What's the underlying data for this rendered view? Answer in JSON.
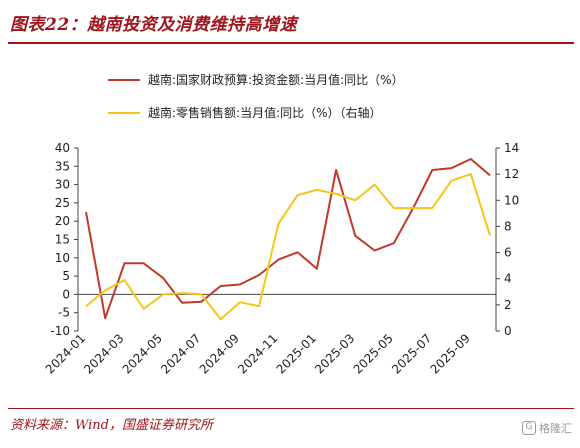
{
  "header": {
    "title": "图表22：越南投资及消费维持高增速"
  },
  "footer": {
    "source": "资料来源：Wind，国盛证券研究所",
    "watermark": "格隆汇"
  },
  "colors": {
    "brand": "#a0141c",
    "series_investment": "#c0392b",
    "series_retail": "#f5c518"
  },
  "chart_data": {
    "type": "line",
    "x": [
      "2024-01",
      "2024-02",
      "2024-03",
      "2024-04",
      "2024-05",
      "2024-06",
      "2024-07",
      "2024-08",
      "2024-09",
      "2024-10",
      "2024-11",
      "2024-12",
      "2025-01",
      "2025-02",
      "2025-03",
      "2025-04",
      "2025-05",
      "2025-06",
      "2025-07",
      "2025-08",
      "2025-09",
      "2025-10"
    ],
    "x_tick_labels": [
      "2024-01",
      "2024-03",
      "2024-05",
      "2024-07",
      "2024-09",
      "2024-11",
      "2025-01",
      "2025-03",
      "2025-05",
      "2025-07",
      "2025-09"
    ],
    "y_left": {
      "range": [
        -10,
        40
      ],
      "ticks": [
        "40",
        "35",
        "30",
        "25",
        "20",
        "15",
        "10",
        "5",
        "0",
        "-5",
        "-10"
      ]
    },
    "y_right": {
      "range": [
        0,
        14
      ],
      "ticks": [
        "14",
        "12",
        "10",
        "8",
        "6",
        "4",
        "2",
        "0"
      ]
    },
    "series": [
      {
        "name": "越南:国家财政预算:投资金额:当月值:同比（%）",
        "axis": "left",
        "color": "#c0392b",
        "values": [
          22.5,
          -6.5,
          8.5,
          8.5,
          4.5,
          -2.3,
          -2.0,
          2.3,
          2.7,
          5.3,
          9.5,
          11.5,
          7.0,
          34.0,
          16.0,
          12.0,
          14.0,
          23.5,
          34.0,
          34.5,
          37.0,
          32.5
        ]
      },
      {
        "name": "越南:零售销售额:当月值:同比（%）（右轴）",
        "axis": "right",
        "color": "#f5c518",
        "values": [
          1.9,
          3.1,
          3.9,
          1.7,
          2.8,
          2.9,
          2.8,
          0.9,
          2.2,
          1.9,
          8.2,
          10.4,
          10.8,
          10.5,
          10.0,
          11.2,
          9.4,
          9.4,
          9.4,
          11.5,
          12.0,
          7.3
        ]
      }
    ]
  }
}
